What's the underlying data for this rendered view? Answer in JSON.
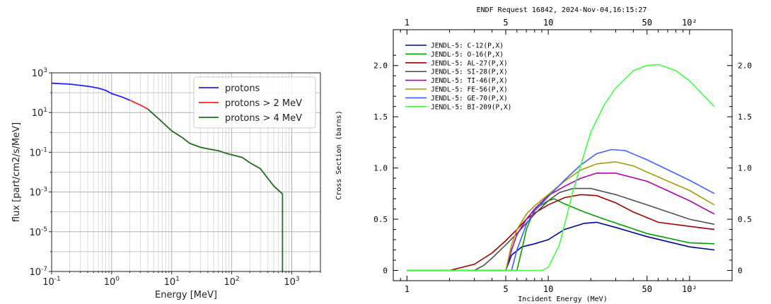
{
  "chart_data": [
    {
      "type": "line",
      "xlabel": "Energy [MeV]",
      "ylabel": "flux [part/cm2/s/MeV]",
      "xscale": "log",
      "yscale": "log",
      "xlim": [
        0.1,
        3000
      ],
      "ylim": [
        1e-07,
        1000
      ],
      "x_ticks": [
        "10^-1",
        "10^0",
        "10^1",
        "10^2",
        "10^3"
      ],
      "y_ticks": [
        "10^-7",
        "10^-5",
        "10^-3",
        "10^-1",
        "10^1",
        "10^3"
      ],
      "grid": true,
      "legend_position": "top-right",
      "colors": {
        "protons": "#1f1fff",
        "gt2": "#ff2020",
        "gt4": "#1e6f1e"
      },
      "series": [
        {
          "name": "protons",
          "x": [
            0.1,
            0.2,
            0.4,
            0.6,
            0.8,
            1.0,
            1.5,
            2.0
          ],
          "y": [
            300,
            270,
            210,
            170,
            130,
            90,
            60,
            42
          ]
        },
        {
          "name": "protons  >  2 MeV",
          "x": [
            2.0,
            3.0,
            4.0
          ],
          "y": [
            42,
            24,
            15
          ]
        },
        {
          "name": "protons  >  4 MeV",
          "x": [
            4.0,
            6.0,
            10,
            15,
            20,
            30,
            40,
            60,
            80,
            100,
            150,
            200,
            300,
            500,
            700,
            700
          ],
          "y": [
            15,
            5,
            1.2,
            0.55,
            0.28,
            0.18,
            0.15,
            0.12,
            0.09,
            0.075,
            0.055,
            0.03,
            0.015,
            0.002,
            0.0008,
            1e-07
          ]
        }
      ]
    },
    {
      "type": "line",
      "title": "ENDF Request 16842, 2024-Nov-04,16:15:27",
      "xlabel": "Incident Energy (MeV)",
      "ylabel": "Cross Section (barns)",
      "xscale": "log",
      "xlim": [
        0.8,
        200
      ],
      "ylim": [
        -0.1,
        2.35
      ],
      "x_ticks": [
        "1",
        "5",
        "10",
        "50",
        "10²"
      ],
      "y_ticks": [
        "0",
        "0.5",
        "1.0",
        "1.5",
        "2.0"
      ],
      "legend_position": "top-left",
      "series": [
        {
          "name": "JENDL-5: C-12(P,X)",
          "color": "#0000a0",
          "x": [
            1,
            5,
            5.5,
            6.5,
            8,
            10,
            13,
            18,
            22,
            30,
            50,
            100,
            150
          ],
          "y": [
            0,
            0,
            0.15,
            0.23,
            0.26,
            0.3,
            0.4,
            0.46,
            0.47,
            0.42,
            0.33,
            0.23,
            0.2
          ]
        },
        {
          "name": "JENDL-5: O-16(P,X)",
          "color": "#00a000",
          "x": [
            1,
            6,
            6.5,
            7,
            8,
            10,
            11,
            13,
            18,
            25,
            50,
            100,
            150
          ],
          "y": [
            0,
            0,
            0.2,
            0.4,
            0.6,
            0.68,
            0.7,
            0.65,
            0.57,
            0.5,
            0.36,
            0.27,
            0.26
          ]
        },
        {
          "name": "JENDL-5: AL-27(P,X)",
          "color": "#a00000",
          "x": [
            1,
            2,
            3,
            4,
            5,
            6,
            7,
            8,
            10,
            13,
            17,
            22,
            30,
            40,
            60,
            100,
            150
          ],
          "y": [
            0,
            0,
            0.06,
            0.17,
            0.29,
            0.4,
            0.5,
            0.56,
            0.64,
            0.71,
            0.74,
            0.73,
            0.66,
            0.57,
            0.47,
            0.43,
            0.4
          ]
        },
        {
          "name": "JENDL-5: SI-28(P,X)",
          "color": "#505050",
          "x": [
            1,
            3,
            3.5,
            4,
            5,
            6,
            8,
            10,
            12,
            15,
            20,
            30,
            50,
            100,
            150
          ],
          "y": [
            0,
            0,
            0.05,
            0.12,
            0.25,
            0.36,
            0.55,
            0.68,
            0.76,
            0.8,
            0.8,
            0.74,
            0.64,
            0.5,
            0.45
          ]
        },
        {
          "name": "JENDL-5: TI-46(P,X)",
          "color": "#b000b0",
          "x": [
            1,
            5,
            5.5,
            6,
            7,
            8,
            10,
            13,
            17,
            22,
            30,
            50,
            100,
            150
          ],
          "y": [
            0,
            0,
            0.2,
            0.35,
            0.5,
            0.6,
            0.73,
            0.82,
            0.9,
            0.95,
            0.95,
            0.87,
            0.68,
            0.55
          ]
        },
        {
          "name": "JENDL-5: FE-56(P,X)",
          "color": "#a0a000",
          "x": [
            1,
            5,
            5.5,
            6,
            7,
            8,
            10,
            13,
            17,
            22,
            30,
            40,
            50,
            100,
            150
          ],
          "y": [
            0,
            0,
            0.25,
            0.4,
            0.55,
            0.63,
            0.74,
            0.87,
            0.98,
            1.04,
            1.06,
            1.02,
            0.96,
            0.78,
            0.64
          ]
        },
        {
          "name": "JENDL-5: GE-70(P,X)",
          "color": "#4060ff",
          "x": [
            1,
            5.5,
            6,
            7,
            8,
            10,
            13,
            17,
            22,
            28,
            35,
            50,
            100,
            150
          ],
          "y": [
            0,
            0,
            0.2,
            0.45,
            0.58,
            0.72,
            0.88,
            1.03,
            1.14,
            1.18,
            1.17,
            1.08,
            0.88,
            0.75
          ]
        },
        {
          "name": "JENDL-5: BI-209(P,X)",
          "color": "#40ff40",
          "x": [
            1,
            9,
            10,
            12,
            15,
            20,
            25,
            30,
            40,
            50,
            60,
            70,
            80,
            100,
            150
          ],
          "y": [
            0,
            0,
            0.03,
            0.25,
            0.78,
            1.35,
            1.62,
            1.78,
            1.95,
            2.0,
            2.01,
            1.98,
            1.95,
            1.85,
            1.6
          ]
        }
      ]
    }
  ]
}
